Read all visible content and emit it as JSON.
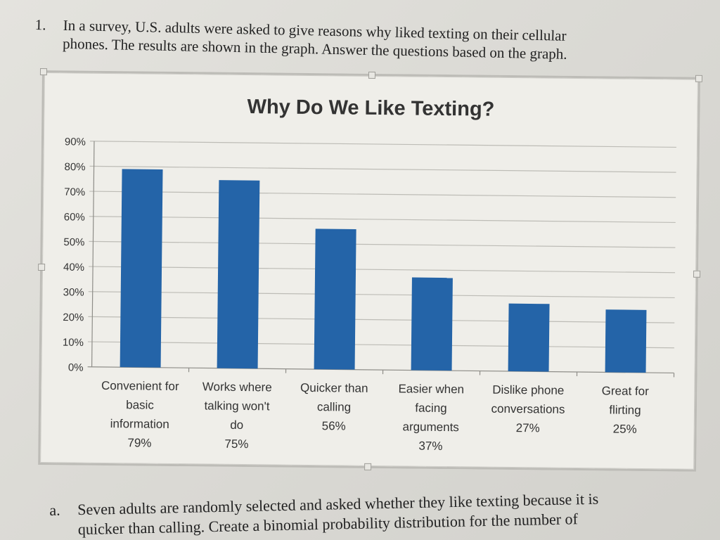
{
  "question": {
    "number": "1.",
    "line1": "In a survey, U.S. adults were asked to give reasons why liked texting on their cellular",
    "line2": "phones.  The results are shown in the graph.  Answer the questions based on the graph."
  },
  "part_a": {
    "label": "a.",
    "line1": "Seven adults are randomly selected and asked whether they like texting because it is",
    "line2": "quicker than calling.  Create a binomial probability distribution for the number of"
  },
  "colors": {
    "bar": "#2464a8",
    "grid": "#bdbcb6",
    "axis": "#8e8d88",
    "tick_text": "#333333"
  },
  "chart_data": {
    "type": "bar",
    "title": "Why Do We Like Texting?",
    "categories": [
      [
        "Convenient for",
        "basic",
        "information",
        "79%"
      ],
      [
        "Works where",
        "talking won't",
        "do",
        "75%"
      ],
      [
        "Quicker than",
        "calling",
        "56%"
      ],
      [
        "Easier when",
        "facing",
        "arguments",
        "37%"
      ],
      [
        "Dislike phone",
        "conversations",
        "27%"
      ],
      [
        "Great for",
        "flirting",
        "25%"
      ]
    ],
    "values": [
      79,
      75,
      56,
      37,
      27,
      25
    ],
    "ylim": [
      0,
      90
    ],
    "yticks": [
      "0%",
      "10%",
      "20%",
      "30%",
      "40%",
      "50%",
      "60%",
      "70%",
      "80%",
      "90%"
    ],
    "grid": true,
    "legend": "none"
  }
}
